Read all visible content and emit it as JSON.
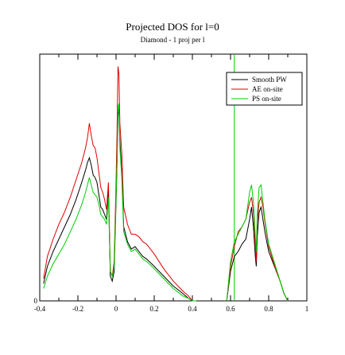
{
  "chart_data": {
    "type": "line",
    "title": "Projected DOS for l=0",
    "subtitle": "Diamond - 1 proj per l",
    "xlabel": "",
    "ylabel": "",
    "xlim": [
      -0.4,
      1.0
    ],
    "ylim": [
      0,
      1.0
    ],
    "x_ticks": [
      -0.4,
      -0.2,
      0,
      0.2,
      0.4,
      0.6,
      0.8,
      1.0
    ],
    "x_tick_labels": [
      "-0.4",
      "-0.2",
      "0",
      "0.2",
      "0.4",
      "0.6",
      "0.8",
      "1"
    ],
    "y_ticks": [
      0
    ],
    "y_tick_labels": [
      "0"
    ],
    "legend_position": "top-right",
    "vertical_line": {
      "x": 0.62,
      "color": "#00cc00"
    },
    "series": [
      {
        "name": "Smooth PW",
        "color": "#000000",
        "x": [
          -0.38,
          -0.36,
          -0.33,
          -0.3,
          -0.27,
          -0.24,
          -0.21,
          -0.18,
          -0.16,
          -0.15,
          -0.14,
          -0.13,
          -0.12,
          -0.11,
          -0.1,
          -0.09,
          -0.08,
          -0.07,
          -0.06,
          -0.05,
          -0.04,
          -0.03,
          -0.02,
          -0.01,
          0.0,
          0.005,
          0.01,
          0.015,
          0.02,
          0.03,
          0.04,
          0.06,
          0.08,
          0.1,
          0.12,
          0.14,
          0.16,
          0.2,
          0.25,
          0.3,
          0.35,
          0.38,
          0.4,
          0.42,
          null,
          0.58,
          0.6,
          0.62,
          0.64,
          0.66,
          0.68,
          0.7,
          0.71,
          0.72,
          0.73,
          0.735,
          0.74,
          0.75,
          0.76,
          0.77,
          0.78,
          0.79,
          0.8,
          0.82,
          0.84,
          0.86,
          0.88,
          0.9
        ],
        "values": [
          0.07,
          0.14,
          0.2,
          0.25,
          0.3,
          0.35,
          0.41,
          0.48,
          0.53,
          0.56,
          0.58,
          0.55,
          0.51,
          0.5,
          0.48,
          0.43,
          0.38,
          0.37,
          0.35,
          0.33,
          0.45,
          0.1,
          0.08,
          0.12,
          0.4,
          0.55,
          0.75,
          0.78,
          0.65,
          0.52,
          0.3,
          0.24,
          0.21,
          0.22,
          0.2,
          0.18,
          0.17,
          0.14,
          0.1,
          0.06,
          0.03,
          0.01,
          0.0,
          0.0,
          null,
          0.0,
          0.12,
          0.18,
          0.2,
          0.23,
          0.25,
          0.33,
          0.38,
          0.3,
          0.18,
          0.14,
          0.26,
          0.36,
          0.38,
          0.33,
          0.28,
          0.24,
          0.2,
          0.16,
          0.12,
          0.08,
          0.03,
          0.0
        ]
      },
      {
        "name": "AE on-site",
        "color": "#e00000",
        "x": [
          -0.38,
          -0.36,
          -0.33,
          -0.3,
          -0.27,
          -0.24,
          -0.21,
          -0.18,
          -0.16,
          -0.15,
          -0.14,
          -0.13,
          -0.12,
          -0.11,
          -0.1,
          -0.09,
          -0.08,
          -0.07,
          -0.06,
          -0.05,
          -0.04,
          -0.03,
          -0.02,
          -0.01,
          0.0,
          0.005,
          0.01,
          0.015,
          0.02,
          0.03,
          0.04,
          0.06,
          0.08,
          0.1,
          0.12,
          0.14,
          0.16,
          0.2,
          0.25,
          0.3,
          0.35,
          0.38,
          0.4,
          0.42,
          null,
          0.58,
          0.6,
          0.62,
          0.64,
          0.66,
          0.68,
          0.7,
          0.71,
          0.72,
          0.73,
          0.735,
          0.74,
          0.75,
          0.76,
          0.77,
          0.78,
          0.79,
          0.8,
          0.82,
          0.84,
          0.86,
          0.88,
          0.9
        ],
        "values": [
          0.09,
          0.18,
          0.25,
          0.31,
          0.36,
          0.42,
          0.49,
          0.56,
          0.62,
          0.66,
          0.72,
          0.67,
          0.63,
          0.62,
          0.58,
          0.52,
          0.46,
          0.44,
          0.41,
          0.37,
          0.48,
          0.12,
          0.1,
          0.16,
          0.48,
          0.68,
          0.95,
          0.92,
          0.72,
          0.6,
          0.38,
          0.31,
          0.27,
          0.27,
          0.26,
          0.24,
          0.23,
          0.19,
          0.13,
          0.08,
          0.04,
          0.02,
          0.0,
          0.0,
          null,
          0.0,
          0.14,
          0.22,
          0.28,
          0.3,
          0.33,
          0.4,
          0.42,
          0.36,
          0.22,
          0.16,
          0.32,
          0.4,
          0.42,
          0.38,
          0.32,
          0.27,
          0.22,
          0.17,
          0.12,
          0.08,
          0.03,
          0.0
        ]
      },
      {
        "name": "PS on-site",
        "color": "#00cc00",
        "x": [
          -0.38,
          -0.36,
          -0.33,
          -0.3,
          -0.27,
          -0.24,
          -0.21,
          -0.18,
          -0.16,
          -0.15,
          -0.14,
          -0.13,
          -0.12,
          -0.11,
          -0.1,
          -0.09,
          -0.08,
          -0.07,
          -0.06,
          -0.05,
          -0.04,
          -0.03,
          -0.02,
          -0.01,
          0.0,
          0.005,
          0.01,
          0.015,
          0.02,
          0.03,
          0.04,
          0.06,
          0.08,
          0.1,
          0.12,
          0.14,
          0.16,
          0.2,
          0.25,
          0.3,
          0.35,
          0.38,
          0.4,
          0.42,
          null,
          0.58,
          0.6,
          0.62,
          0.64,
          0.66,
          0.68,
          0.7,
          0.71,
          0.72,
          0.73,
          0.735,
          0.74,
          0.75,
          0.76,
          0.77,
          0.78,
          0.79,
          0.8,
          0.82,
          0.84,
          0.86,
          0.88,
          0.9
        ],
        "values": [
          0.05,
          0.1,
          0.15,
          0.19,
          0.23,
          0.28,
          0.33,
          0.39,
          0.44,
          0.47,
          0.5,
          0.47,
          0.44,
          0.43,
          0.42,
          0.39,
          0.35,
          0.34,
          0.33,
          0.31,
          0.42,
          0.12,
          0.1,
          0.14,
          0.42,
          0.56,
          0.78,
          0.8,
          0.62,
          0.5,
          0.28,
          0.23,
          0.2,
          0.21,
          0.19,
          0.17,
          0.16,
          0.13,
          0.09,
          0.05,
          0.02,
          0.01,
          0.0,
          0.0,
          null,
          0.0,
          0.16,
          0.24,
          0.27,
          0.3,
          0.33,
          0.44,
          0.47,
          0.4,
          0.26,
          0.2,
          0.35,
          0.46,
          0.47,
          0.4,
          0.33,
          0.28,
          0.23,
          0.18,
          0.13,
          0.08,
          0.03,
          0.0
        ]
      }
    ]
  }
}
